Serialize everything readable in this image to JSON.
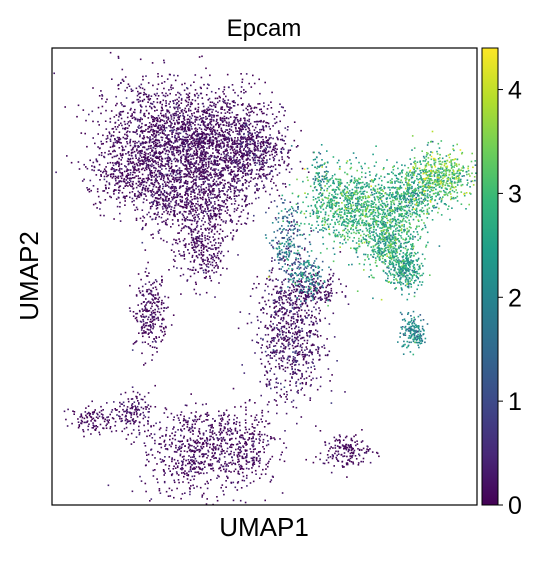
{
  "chart_data": {
    "type": "scatter",
    "title": "Epcam",
    "xlabel": "UMAP1",
    "ylabel": "UMAP2",
    "xlim": [
      0,
      100
    ],
    "ylim": [
      0,
      100
    ],
    "grid": false,
    "colormap": "viridis",
    "colorbar": {
      "min": 0,
      "max": 4.4,
      "ticks": [
        0,
        1,
        2,
        3,
        4
      ],
      "tick_labels": [
        "0",
        "1",
        "2",
        "3",
        "4"
      ],
      "stops": [
        "#440154",
        "#482878",
        "#3e4989",
        "#31688e",
        "#26828e",
        "#1f9e89",
        "#35b779",
        "#6ece58",
        "#b5de2b",
        "#fde725"
      ]
    },
    "clusters": [
      {
        "cx": 24,
        "cy": 82,
        "sx": 7,
        "sy": 6,
        "value": 0.1,
        "spread": 0.2,
        "count": 900
      },
      {
        "cx": 33,
        "cy": 78,
        "sx": 5,
        "sy": 5,
        "value": 0.15,
        "spread": 0.25,
        "count": 700
      },
      {
        "cx": 42,
        "cy": 80,
        "sx": 6,
        "sy": 6,
        "value": 0.1,
        "spread": 0.2,
        "count": 700
      },
      {
        "cx": 47,
        "cy": 77,
        "sx": 4,
        "sy": 4,
        "value": 0.2,
        "spread": 0.3,
        "count": 400
      },
      {
        "cx": 18,
        "cy": 73,
        "sx": 5,
        "sy": 4,
        "value": 0.1,
        "spread": 0.2,
        "count": 400
      },
      {
        "cx": 27,
        "cy": 67,
        "sx": 4,
        "sy": 4,
        "value": 0.15,
        "spread": 0.2,
        "count": 350
      },
      {
        "cx": 38,
        "cy": 67,
        "sx": 4,
        "sy": 4,
        "value": 0.1,
        "spread": 0.2,
        "count": 350
      },
      {
        "cx": 35,
        "cy": 56,
        "sx": 3,
        "sy": 4,
        "value": 0.1,
        "spread": 0.2,
        "count": 300
      },
      {
        "cx": 23,
        "cy": 42,
        "sx": 2,
        "sy": 4,
        "value": 0.1,
        "spread": 0.2,
        "count": 250
      },
      {
        "cx": 56,
        "cy": 37,
        "sx": 4,
        "sy": 7,
        "value": 0.2,
        "spread": 0.3,
        "count": 700
      },
      {
        "cx": 60,
        "cy": 47,
        "sx": 4,
        "sy": 2,
        "value": 0.15,
        "spread": 0.2,
        "count": 200
      },
      {
        "cx": 10,
        "cy": 19,
        "sx": 3,
        "sy": 1.5,
        "value": 0.1,
        "spread": 0.15,
        "count": 120
      },
      {
        "cx": 19,
        "cy": 21,
        "sx": 2,
        "sy": 2,
        "value": 0.2,
        "spread": 0.2,
        "count": 120
      },
      {
        "cx": 33,
        "cy": 12,
        "sx": 6,
        "sy": 5,
        "value": 0.1,
        "spread": 0.2,
        "count": 600
      },
      {
        "cx": 45,
        "cy": 13,
        "sx": 4,
        "sy": 4,
        "value": 0.1,
        "spread": 0.2,
        "count": 300
      },
      {
        "cx": 69,
        "cy": 12,
        "sx": 3,
        "sy": 2,
        "value": 0.1,
        "spread": 0.15,
        "count": 160
      },
      {
        "cx": 68,
        "cy": 66,
        "sx": 5,
        "sy": 4,
        "value": 2.8,
        "spread": 0.5,
        "count": 600
      },
      {
        "cx": 77,
        "cy": 62,
        "sx": 5,
        "sy": 5,
        "value": 2.9,
        "spread": 0.5,
        "count": 600
      },
      {
        "cx": 84,
        "cy": 68,
        "sx": 4,
        "sy": 3,
        "value": 2.6,
        "spread": 0.5,
        "count": 400
      },
      {
        "cx": 91,
        "cy": 72,
        "sx": 4,
        "sy": 3,
        "value": 3.2,
        "spread": 0.6,
        "count": 500
      },
      {
        "cx": 80,
        "cy": 57,
        "sx": 2.5,
        "sy": 3,
        "value": 2.7,
        "spread": 0.5,
        "count": 300
      },
      {
        "cx": 83,
        "cy": 51,
        "sx": 2,
        "sy": 2,
        "value": 2.4,
        "spread": 0.5,
        "count": 250
      },
      {
        "cx": 85,
        "cy": 38,
        "sx": 1.5,
        "sy": 2,
        "value": 2.1,
        "spread": 0.4,
        "count": 160
      },
      {
        "cx": 55,
        "cy": 58,
        "sx": 2,
        "sy": 4,
        "value": 1.5,
        "spread": 0.7,
        "count": 200
      },
      {
        "cx": 60,
        "cy": 50,
        "sx": 2,
        "sy": 3,
        "value": 1.8,
        "spread": 0.7,
        "count": 160
      },
      {
        "cx": 63,
        "cy": 73,
        "sx": 1,
        "sy": 3,
        "value": 2.2,
        "spread": 0.5,
        "count": 60
      }
    ]
  }
}
